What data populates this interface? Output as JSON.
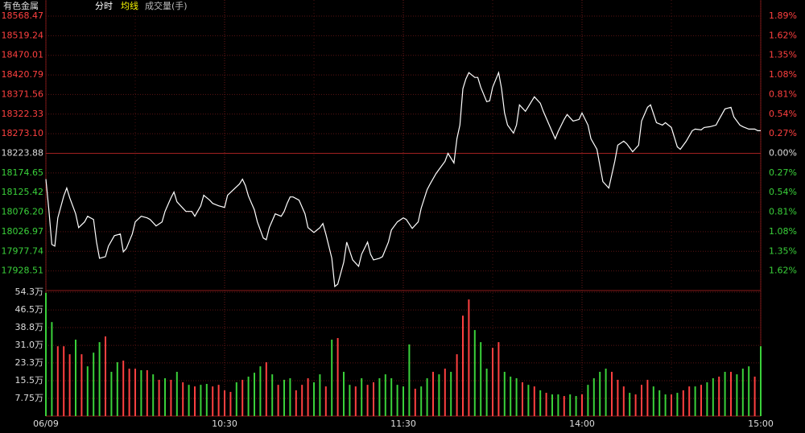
{
  "header": {
    "name": "有色金属",
    "mode": "分时",
    "average": "均线",
    "volume_label": "成交量(手)"
  },
  "chart_data": [
    {
      "type": "line",
      "color": "#ffffff",
      "grid": true,
      "x": [
        0,
        1,
        2,
        3,
        4,
        6,
        7,
        8,
        10,
        11,
        13,
        14,
        16,
        17,
        18,
        20,
        21,
        23,
        25,
        26,
        27,
        29,
        30,
        32,
        34,
        35,
        37,
        39,
        40,
        42,
        43,
        44,
        46,
        47,
        49,
        50,
        52,
        53,
        55,
        56,
        58,
        60,
        61,
        63,
        65,
        66,
        67,
        68,
        70,
        71,
        73,
        74,
        75,
        77,
        79,
        80,
        81,
        82,
        83,
        85,
        87,
        88,
        90,
        92,
        93,
        94,
        96,
        97,
        98,
        100,
        101,
        103,
        105,
        106,
        108,
        109,
        110,
        112,
        113,
        115,
        116,
        118,
        120,
        121,
        123,
        125,
        126,
        128,
        129,
        131,
        132,
        134,
        135,
        137,
        138,
        139,
        140,
        141,
        142,
        144,
        145,
        146,
        148,
        149,
        150,
        152,
        153,
        154,
        155,
        157,
        158,
        159,
        161,
        162,
        164,
        166,
        167,
        169,
        171,
        172,
        174,
        175,
        177,
        179,
        180,
        182,
        183,
        185,
        187,
        189,
        191,
        192,
        194,
        195,
        197,
        199,
        200,
        202,
        203,
        205,
        207,
        208,
        210,
        212,
        213,
        215,
        217,
        218,
        220,
        221,
        223,
        225,
        226,
        228,
        230,
        231,
        233,
        234,
        236,
        238,
        239,
        240
      ],
      "values": [
        18159.0,
        18082.0,
        17994.8,
        17990.8,
        18061.7,
        18116.5,
        18136.7,
        18112.4,
        18071.9,
        18037.4,
        18051.6,
        18065.8,
        18057.7,
        18000.9,
        17960.4,
        17964.4,
        17990.8,
        18017.1,
        18021.2,
        17976.6,
        17984.7,
        18021.2,
        18051.6,
        18065.8,
        18061.7,
        18057.7,
        18041.5,
        18051.6,
        18078.0,
        18112.4,
        18126.6,
        18102.3,
        18086.1,
        18078.0,
        18078.0,
        18065.8,
        18092.1,
        18118.5,
        18106.3,
        18098.2,
        18092.1,
        18088.1,
        18118.5,
        18132.7,
        18146.9,
        18159.0,
        18142.8,
        18116.5,
        18082.0,
        18051.6,
        18011.1,
        18007.0,
        18037.4,
        18071.9,
        18065.8,
        18078.0,
        18098.2,
        18114.4,
        18114.4,
        18106.3,
        18071.9,
        18037.4,
        18025.3,
        18037.4,
        18047.6,
        18021.2,
        17960.4,
        17889.4,
        17895.5,
        17950.3,
        18000.9,
        17956.3,
        17940.1,
        17970.5,
        18000.9,
        17970.5,
        17956.3,
        17960.4,
        17964.4,
        18000.9,
        18031.3,
        18051.6,
        18061.7,
        18057.7,
        18035.4,
        18051.6,
        18086.1,
        18132.7,
        18146.9,
        18173.2,
        18183.4,
        18203.6,
        18223.9,
        18199.6,
        18260.4,
        18294.8,
        18386.0,
        18410.4,
        18426.6,
        18414.4,
        18414.4,
        18390.1,
        18353.6,
        18355.6,
        18390.1,
        18426.6,
        18386.0,
        18325.2,
        18294.8,
        18274.6,
        18294.8,
        18345.5,
        18329.3,
        18341.4,
        18365.8,
        18349.6,
        18329.3,
        18294.8,
        18260.4,
        18278.6,
        18309.0,
        18321.2,
        18305.0,
        18309.0,
        18325.2,
        18294.8,
        18260.4,
        18234.0,
        18153.0,
        18136.7,
        18203.6,
        18244.2,
        18254.3,
        18248.2,
        18228.0,
        18244.2,
        18305.0,
        18339.4,
        18345.5,
        18300.9,
        18294.8,
        18300.9,
        18288.8,
        18240.1,
        18234.0,
        18254.3,
        18280.6,
        18284.7,
        18282.7,
        18288.8,
        18290.8,
        18294.8,
        18309.0,
        18335.4,
        18339.4,
        18315.1,
        18294.8,
        18290.8,
        18284.7,
        18284.7,
        18280.6,
        18280.6
      ],
      "xlim": [
        0,
        240
      ],
      "xticks": [
        {
          "value": 0,
          "label": "06/09"
        },
        {
          "value": 60,
          "label": "10:30"
        },
        {
          "value": 120,
          "label": "11:30"
        },
        {
          "value": 180,
          "label": "14:00"
        },
        {
          "value": 240,
          "label": "15:00"
        }
      ],
      "ylim": [
        17879.29,
        18568.47
      ],
      "yticks": [
        18568.47,
        18519.24,
        18470.01,
        18420.79,
        18371.56,
        18322.33,
        {
          "value": 18273.1,
          "label": "18273.10"
        },
        18223.88,
        18174.65,
        18125.42,
        {
          "value": 18076.2,
          "label": "18076.20"
        },
        18026.97,
        17977.74,
        17928.51
      ],
      "y2lim": [
        -1.89,
        1.89
      ],
      "y2ticks": [
        {
          "value": 1.89,
          "label": "1.89%"
        },
        {
          "value": 1.62,
          "label": "1.62%"
        },
        {
          "value": 1.35,
          "label": "1.35%"
        },
        {
          "value": 1.08,
          "label": "1.08%"
        },
        {
          "value": 0.81,
          "label": "0.81%"
        },
        {
          "value": 0.54,
          "label": "0.54%"
        },
        {
          "value": 0.27,
          "label": "0.27%"
        },
        {
          "value": 0,
          "label": "0.00%"
        },
        {
          "value": -0.27,
          "label": "0.27%"
        },
        {
          "value": -0.54,
          "label": "0.54%"
        },
        {
          "value": -0.81,
          "label": "0.81%"
        },
        {
          "value": -1.08,
          "label": "1.08%"
        },
        {
          "value": -1.35,
          "label": "1.35%"
        },
        {
          "value": -1.62,
          "label": "1.62%"
        }
      ]
    },
    {
      "type": "bar",
      "grid": true,
      "x": [
        0,
        2,
        4,
        6,
        8,
        10,
        12,
        14,
        16,
        18,
        20,
        22,
        24,
        26,
        28,
        30,
        32,
        34,
        36,
        38,
        40,
        42,
        44,
        46,
        48,
        50,
        52,
        54,
        56,
        58,
        60,
        62,
        64,
        66,
        68,
        70,
        72,
        74,
        76,
        78,
        80,
        82,
        84,
        86,
        88,
        90,
        92,
        94,
        96,
        98,
        100,
        102,
        104,
        106,
        108,
        110,
        112,
        114,
        116,
        118,
        120,
        122,
        124,
        126,
        128,
        130,
        132,
        134,
        136,
        138,
        140,
        142,
        144,
        146,
        148,
        150,
        152,
        154,
        156,
        158,
        160,
        162,
        164,
        166,
        168,
        170,
        172,
        174,
        176,
        178,
        180,
        182,
        184,
        186,
        188,
        190,
        192,
        194,
        196,
        198,
        200,
        202,
        204,
        206,
        208,
        210,
        212,
        214,
        216,
        218,
        220,
        222,
        224,
        226,
        228,
        230,
        232,
        234,
        236,
        238,
        240
      ],
      "values": [
        54.0,
        41.2,
        30.6,
        30.6,
        27.1,
        33.5,
        27.1,
        21.8,
        27.8,
        32.4,
        34.9,
        19.4,
        23.6,
        24.3,
        20.8,
        20.8,
        20.1,
        20.1,
        18.3,
        15.9,
        16.6,
        15.9,
        19.4,
        14.8,
        13.7,
        13.0,
        13.7,
        14.1,
        13.0,
        13.7,
        11.3,
        10.6,
        14.8,
        15.9,
        17.3,
        19.0,
        21.8,
        23.6,
        18.3,
        13.7,
        15.9,
        16.6,
        11.3,
        13.7,
        16.6,
        14.8,
        18.3,
        13.0,
        33.5,
        34.2,
        19.4,
        13.7,
        13.0,
        16.6,
        13.7,
        14.8,
        16.6,
        18.3,
        16.6,
        13.7,
        13.0,
        31.4,
        12.0,
        13.0,
        16.6,
        19.4,
        18.3,
        20.8,
        19.4,
        27.1,
        44.0,
        51.1,
        37.7,
        32.4,
        20.8,
        29.9,
        32.4,
        19.4,
        17.3,
        16.6,
        14.8,
        13.7,
        13.0,
        11.3,
        10.2,
        9.5,
        9.5,
        8.8,
        9.5,
        8.8,
        9.5,
        13.7,
        16.6,
        19.4,
        20.8,
        19.4,
        15.9,
        13.0,
        10.2,
        9.5,
        13.7,
        15.9,
        13.0,
        11.3,
        9.5,
        9.5,
        10.2,
        11.3,
        13.0,
        13.0,
        13.7,
        14.8,
        16.6,
        17.3,
        19.4,
        19.4,
        18.3,
        20.8,
        21.8,
        17.3,
        30.6
      ],
      "colors": [
        "#3ad13a",
        "#3ad13a",
        "#ff4040",
        "#ff4040",
        "#ff4040",
        "#3ad13a",
        "#ff4040",
        "#3ad13a",
        "#3ad13a",
        "#3ad13a",
        "#ff4040",
        "#3ad13a",
        "#3ad13a",
        "#ff4040",
        "#ff4040",
        "#ff4040",
        "#3ad13a",
        "#ff4040",
        "#3ad13a",
        "#ff4040",
        "#3ad13a",
        "#ff4040",
        "#3ad13a",
        "#ff4040",
        "#3ad13a",
        "#ff4040",
        "#3ad13a",
        "#3ad13a",
        "#ff4040",
        "#ff4040",
        "#ff4040",
        "#ff4040",
        "#3ad13a",
        "#ff4040",
        "#3ad13a",
        "#3ad13a",
        "#3ad13a",
        "#ff4040",
        "#3ad13a",
        "#ff4040",
        "#3ad13a",
        "#3ad13a",
        "#ff4040",
        "#ff4040",
        "#ff4040",
        "#3ad13a",
        "#3ad13a",
        "#ff4040",
        "#3ad13a",
        "#ff4040",
        "#3ad13a",
        "#3ad13a",
        "#ff4040",
        "#3ad13a",
        "#ff4040",
        "#ff4040",
        "#3ad13a",
        "#3ad13a",
        "#3ad13a",
        "#3ad13a",
        "#3ad13a",
        "#3ad13a",
        "#ff4040",
        "#3ad13a",
        "#3ad13a",
        "#ff4040",
        "#3ad13a",
        "#ff4040",
        "#3ad13a",
        "#ff4040",
        "#ff4040",
        "#ff4040",
        "#3ad13a",
        "#3ad13a",
        "#3ad13a",
        "#ff4040",
        "#ff4040",
        "#3ad13a",
        "#3ad13a",
        "#3ad13a",
        "#ff4040",
        "#3ad13a",
        "#ff4040",
        "#3ad13a",
        "#ff4040",
        "#3ad13a",
        "#3ad13a",
        "#ff4040",
        "#3ad13a",
        "#3ad13a",
        "#ff4040",
        "#3ad13a",
        "#3ad13a",
        "#3ad13a",
        "#3ad13a",
        "#ff4040",
        "#ff4040",
        "#ff4040",
        "#3ad13a",
        "#ff4040",
        "#ff4040",
        "#ff4040",
        "#3ad13a",
        "#3ad13a",
        "#3ad13a",
        "#ff4040",
        "#3ad13a",
        "#ff4040",
        "#ff4040",
        "#3ad13a",
        "#ff4040",
        "#3ad13a",
        "#3ad13a",
        "#ff4040",
        "#3ad13a",
        "#ff4040",
        "#3ad13a",
        "#3ad13a",
        "#3ad13a",
        "#ff4040",
        "#3ad13a"
      ],
      "xlim": [
        0,
        240
      ],
      "ylim": [
        0,
        54.3
      ],
      "yticks": [
        {
          "value": 54.3,
          "label": "54.3万"
        },
        {
          "value": 46.5,
          "label": "46.5万"
        },
        {
          "value": 38.8,
          "label": "38.8万"
        },
        {
          "value": 31.0,
          "label": "31.0万"
        },
        {
          "value": 23.3,
          "label": "23.3万"
        },
        {
          "value": 15.5,
          "label": "15.5万"
        },
        {
          "value": 7.75,
          "label": "7.75万"
        }
      ]
    }
  ]
}
